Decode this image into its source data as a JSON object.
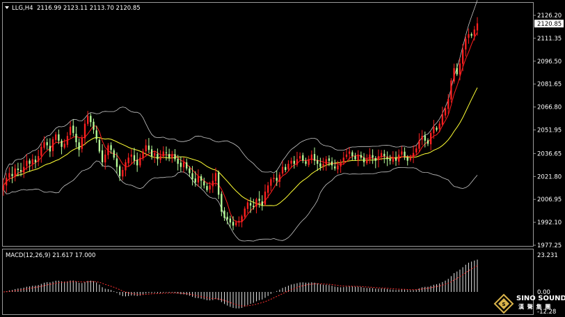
{
  "header": {
    "symbol_label": "LLG,H4",
    "ohlc": "2116.99 2123.11 2113.70 2120.85"
  },
  "price_axis": {
    "ticks": [
      "2126.20",
      "2111.35",
      "2096.50",
      "2081.65",
      "2066.80",
      "2051.95",
      "2036.65",
      "2021.80",
      "2006.95",
      "1992.10",
      "1977.25"
    ],
    "current_price": "2120.85"
  },
  "macd": {
    "label": "MACD(12,26,9) 21.617 17.000",
    "ticks": [
      "23.231",
      "0.00",
      "-12.28"
    ]
  },
  "logo": {
    "line1": "SINO SOUND",
    "line2": "漢 聲 集 團"
  },
  "colors": {
    "background": "#000000",
    "bull_candle": "#ff2020",
    "bear_candle": "#b8ff9a",
    "bands": "#c8c8c8",
    "ma_fast": "#ff1e1e",
    "ma_slow": "#ffff33",
    "macd_hist": "#e6e6e6",
    "macd_signal": "#ff3030"
  },
  "chart_data": {
    "type": "candlestick",
    "series": [
      {
        "name": "LLG,H4",
        "close": [
          2016,
          2021,
          2024,
          2022,
          2027,
          2026,
          2025,
          2028,
          2032,
          2030,
          2033,
          2031,
          2035,
          2041,
          2044,
          2042,
          2038,
          2046,
          2049,
          2045,
          2041,
          2043,
          2048,
          2054,
          2050,
          2044,
          2039,
          2047,
          2056,
          2061,
          2057,
          2052,
          2046,
          2038,
          2031,
          2036,
          2042,
          2039,
          2034,
          2028,
          2022,
          2026,
          2031,
          2034,
          2036,
          2032,
          2029,
          2034,
          2038,
          2042,
          2039,
          2035,
          2037,
          2033,
          2035,
          2038,
          2037,
          2034,
          2036,
          2033,
          2030,
          2028,
          2031,
          2027,
          2024,
          2020,
          2018,
          2022,
          2019,
          2016,
          2013,
          2016,
          2019,
          2024,
          2010,
          1999,
          1995,
          1994,
          1992,
          1990,
          1992,
          1993,
          1996,
          2001,
          2005,
          2003,
          2002,
          2007,
          2006,
          2003,
          2012,
          2016,
          2020,
          2021,
          2019,
          2023,
          2028,
          2026,
          2030,
          2032,
          2030,
          2033,
          2035,
          2032,
          2030,
          2033,
          2036,
          2032,
          2030,
          2028,
          2030,
          2033,
          2032,
          2029,
          2027,
          2029,
          2031,
          2034,
          2036,
          2038,
          2035,
          2033,
          2036,
          2034,
          2031,
          2033,
          2036,
          2034,
          2032,
          2035,
          2037,
          2035,
          2033,
          2032,
          2034,
          2032,
          2036,
          2038,
          2035,
          2032,
          2034,
          2037,
          2040,
          2045,
          2048,
          2045,
          2043,
          2050,
          2054,
          2052,
          2056,
          2062,
          2066,
          2072,
          2084,
          2092,
          2088,
          2095,
          2104,
          2111,
          2114,
          2113,
          2117,
          2121
        ]
      }
    ]
  }
}
